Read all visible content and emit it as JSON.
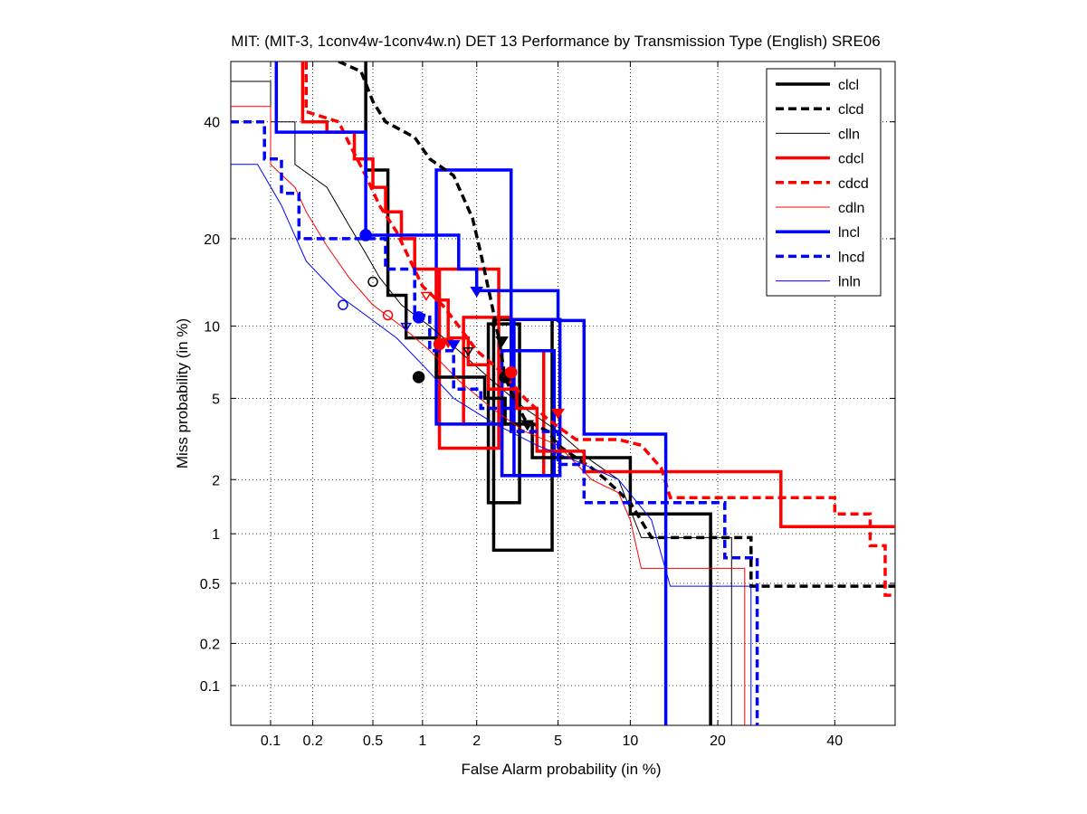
{
  "chart_data": {
    "type": "line",
    "title": "MIT: (MIT-3, 1conv4w-1conv4w.n) DET 13 Performance by Transmission Type (English) SRE06",
    "xlabel": "False Alarm probability (in %)",
    "ylabel": "Miss probability (in %)",
    "xscale": "probit",
    "yscale": "probit",
    "xlim": [
      0.05,
      52
    ],
    "ylim": [
      0.05,
      52
    ],
    "xticks": [
      0.1,
      0.2,
      0.5,
      1,
      2,
      5,
      10,
      20,
      40
    ],
    "yticks": [
      0.1,
      0.2,
      0.5,
      1,
      2,
      5,
      10,
      20,
      40
    ],
    "xtick_labels": [
      "0.1",
      "0.2",
      "0.5",
      "1",
      "2",
      "5",
      "10",
      "20",
      "40"
    ],
    "ytick_labels": [
      "0.1",
      "0.2",
      "0.5",
      "1",
      "2",
      "5",
      "10",
      "20",
      "40"
    ],
    "grid": true,
    "legend_position": "top-right",
    "series": [
      {
        "name": "clcl",
        "color": "#000000",
        "style": "solid",
        "weight": "thick",
        "points": [
          [
            0.45,
            52
          ],
          [
            0.45,
            31
          ],
          [
            0.62,
            31
          ],
          [
            0.62,
            13
          ],
          [
            0.8,
            13
          ],
          [
            0.8,
            9
          ],
          [
            1.2,
            9
          ],
          [
            1.2,
            6.2
          ],
          [
            2.2,
            6.2
          ],
          [
            2.2,
            5
          ],
          [
            2.8,
            5
          ],
          [
            2.8,
            3.8
          ],
          [
            3.8,
            3.8
          ],
          [
            3.8,
            2.6
          ],
          [
            10,
            2.6
          ],
          [
            10,
            1.3
          ],
          [
            19,
            1.3
          ],
          [
            19,
            0.05
          ]
        ],
        "dcf": [
          0.95,
          6.2
        ],
        "min_dcf": [
          3.6,
          3.8
        ]
      },
      {
        "name": "clcd",
        "color": "#000000",
        "style": "dashed",
        "weight": "thick",
        "points": [
          [
            0.3,
            52
          ],
          [
            0.42,
            50
          ],
          [
            0.5,
            44
          ],
          [
            0.6,
            40
          ],
          [
            0.9,
            37
          ],
          [
            1.1,
            33
          ],
          [
            1.5,
            30
          ],
          [
            1.9,
            23
          ],
          [
            2.1,
            18
          ],
          [
            2.4,
            12
          ],
          [
            2.6,
            9
          ],
          [
            2.8,
            6.2
          ],
          [
            3.1,
            5
          ],
          [
            3.5,
            4
          ],
          [
            4.5,
            3.5
          ],
          [
            5,
            3
          ],
          [
            6,
            2.6
          ],
          [
            7,
            2.3
          ],
          [
            8,
            2
          ],
          [
            10,
            1.5
          ],
          [
            12,
            0.95
          ],
          [
            25,
            0.95
          ],
          [
            25,
            0.48
          ],
          [
            52,
            0.48
          ]
        ],
        "dcf": [
          2.8,
          6.2
        ],
        "min_dcf": [
          2.7,
          8.8
        ]
      },
      {
        "name": "clln",
        "color": "#000000",
        "style": "solid",
        "weight": "thin",
        "points": [
          [
            0.05,
            48
          ],
          [
            0.1,
            48
          ],
          [
            0.1,
            40
          ],
          [
            0.15,
            40
          ],
          [
            0.15,
            32
          ],
          [
            0.25,
            28
          ],
          [
            0.35,
            22
          ],
          [
            0.45,
            18
          ],
          [
            0.55,
            15
          ],
          [
            0.75,
            12
          ],
          [
            1.1,
            10
          ],
          [
            1.6,
            8
          ],
          [
            2.4,
            6
          ],
          [
            3.5,
            4.5
          ],
          [
            5,
            3.5
          ],
          [
            7,
            2.5
          ],
          [
            9,
            2
          ],
          [
            11,
            0.95
          ],
          [
            22,
            0.95
          ],
          [
            22,
            0.05
          ]
        ],
        "dcf": [
          0.5,
          14.5
        ],
        "min_dcf": [
          1.8,
          8
        ]
      },
      {
        "name": "cdcl",
        "color": "#ff0000",
        "style": "solid",
        "weight": "thick",
        "points": [
          [
            0.17,
            52
          ],
          [
            0.17,
            40
          ],
          [
            0.25,
            40
          ],
          [
            0.25,
            38
          ],
          [
            0.38,
            38
          ],
          [
            0.38,
            33
          ],
          [
            0.5,
            33
          ],
          [
            0.5,
            28
          ],
          [
            0.6,
            28
          ],
          [
            0.6,
            24
          ],
          [
            0.75,
            24
          ],
          [
            0.75,
            20
          ],
          [
            0.9,
            20
          ],
          [
            0.9,
            16
          ],
          [
            1.2,
            16
          ],
          [
            1.2,
            12.5
          ],
          [
            1.4,
            12.5
          ],
          [
            1.4,
            9
          ],
          [
            1.8,
            9
          ],
          [
            1.8,
            7
          ],
          [
            2.3,
            7
          ],
          [
            2.3,
            5.5
          ],
          [
            3.2,
            5.5
          ],
          [
            3.2,
            4.5
          ],
          [
            4,
            4.5
          ],
          [
            4,
            2.8
          ],
          [
            6.5,
            2.8
          ],
          [
            6.5,
            2.2
          ],
          [
            30,
            2.2
          ],
          [
            30,
            1.1
          ],
          [
            52,
            1.1
          ]
        ],
        "dcf": [
          1.25,
          8.5
        ],
        "min_dcf": [
          5,
          4.3
        ]
      },
      {
        "name": "cdcd",
        "color": "#ff0000",
        "style": "dashed",
        "weight": "thick",
        "points": [
          [
            0.18,
            52
          ],
          [
            0.18,
            42
          ],
          [
            0.3,
            40
          ],
          [
            0.35,
            36
          ],
          [
            0.45,
            30
          ],
          [
            0.55,
            25
          ],
          [
            0.7,
            21
          ],
          [
            0.85,
            17
          ],
          [
            1.0,
            14
          ],
          [
            1.3,
            12
          ],
          [
            1.6,
            10
          ],
          [
            2,
            8
          ],
          [
            2.7,
            6.5
          ],
          [
            3.5,
            5
          ],
          [
            4.5,
            4
          ],
          [
            6,
            3.2
          ],
          [
            9,
            3.2
          ],
          [
            11,
            3
          ],
          [
            13,
            2.3
          ],
          [
            14,
            1.6
          ],
          [
            40,
            1.6
          ],
          [
            40,
            1.3
          ],
          [
            47,
            1.3
          ],
          [
            47,
            0.85
          ],
          [
            50,
            0.85
          ],
          [
            50,
            0.42
          ],
          [
            52,
            0.42
          ]
        ],
        "dcf": [
          3,
          6.5
        ],
        "min_dcf": [
          1.4,
          8.7
        ]
      },
      {
        "name": "cdln",
        "color": "#ff0000",
        "style": "solid",
        "weight": "thin",
        "points": [
          [
            0.05,
            43
          ],
          [
            0.1,
            43
          ],
          [
            0.1,
            32
          ],
          [
            0.15,
            28
          ],
          [
            0.18,
            24
          ],
          [
            0.25,
            19
          ],
          [
            0.35,
            15
          ],
          [
            0.5,
            12
          ],
          [
            0.75,
            10
          ],
          [
            1.1,
            8
          ],
          [
            1.6,
            6
          ],
          [
            2.4,
            4.5
          ],
          [
            3.5,
            3.5
          ],
          [
            5,
            3
          ],
          [
            7,
            2
          ],
          [
            9,
            1.7
          ],
          [
            10,
            1.2
          ],
          [
            11,
            0.62
          ],
          [
            24,
            0.62
          ],
          [
            24,
            0.05
          ]
        ],
        "dcf": [
          0.62,
          11
        ],
        "min_dcf": [
          1.05,
          13
        ]
      },
      {
        "name": "lncl",
        "color": "#0000ff",
        "style": "solid",
        "weight": "thick",
        "points": [
          [
            0.11,
            52
          ],
          [
            0.11,
            38
          ],
          [
            0.45,
            38
          ],
          [
            0.45,
            20.5
          ],
          [
            1.6,
            20.5
          ],
          [
            1.6,
            16
          ],
          [
            2,
            16
          ],
          [
            2,
            13.5
          ],
          [
            5,
            13.5
          ],
          [
            5,
            10.5
          ],
          [
            6.5,
            10.5
          ],
          [
            6.5,
            3.4
          ],
          [
            13.5,
            3.4
          ],
          [
            13.5,
            0.05
          ]
        ],
        "dcf": [
          0.45,
          20.5
        ],
        "min_dcf": [
          2,
          13.5
        ]
      },
      {
        "name": "lncd",
        "color": "#0000ff",
        "style": "dashed",
        "weight": "thick",
        "points": [
          [
            0.05,
            40
          ],
          [
            0.09,
            40
          ],
          [
            0.09,
            33
          ],
          [
            0.12,
            33
          ],
          [
            0.12,
            27
          ],
          [
            0.16,
            27
          ],
          [
            0.16,
            20
          ],
          [
            0.28,
            20
          ],
          [
            0.28,
            20
          ],
          [
            0.6,
            20
          ],
          [
            0.6,
            16
          ],
          [
            0.9,
            16
          ],
          [
            0.9,
            11
          ],
          [
            1.1,
            11
          ],
          [
            1.1,
            8
          ],
          [
            1.5,
            8
          ],
          [
            1.5,
            5.5
          ],
          [
            2.1,
            5.5
          ],
          [
            2.1,
            4.5
          ],
          [
            3,
            4.5
          ],
          [
            3,
            3.5
          ],
          [
            5,
            3.5
          ],
          [
            5,
            2.4
          ],
          [
            6.5,
            2.4
          ],
          [
            6.5,
            1.5
          ],
          [
            21,
            1.5
          ],
          [
            21,
            0.72
          ],
          [
            26,
            0.72
          ],
          [
            26,
            0.05
          ]
        ],
        "dcf": [
          0.95,
          10.8
        ],
        "min_dcf": [
          1.5,
          8.5
        ]
      },
      {
        "name": "lnln",
        "color": "#0000ff",
        "style": "solid",
        "weight": "thin",
        "points": [
          [
            0.05,
            32
          ],
          [
            0.08,
            32
          ],
          [
            0.12,
            25
          ],
          [
            0.18,
            17
          ],
          [
            0.3,
            13
          ],
          [
            0.45,
            11
          ],
          [
            0.7,
            9
          ],
          [
            1,
            7
          ],
          [
            1.5,
            5
          ],
          [
            2.5,
            3.8
          ],
          [
            4,
            3
          ],
          [
            6,
            2.5
          ],
          [
            9,
            2
          ],
          [
            12,
            1.2
          ],
          [
            14,
            0.48
          ],
          [
            25,
            0.48
          ],
          [
            25,
            0.05
          ]
        ],
        "dcf": [
          0.32,
          12
        ],
        "min_dcf": [
          0.8,
          10
        ]
      }
    ],
    "confidence_boxes": [
      {
        "series": "clcl",
        "fa": [
          2.45,
          4.7
        ],
        "miss": [
          0.8,
          10.6
        ]
      },
      {
        "series": "clcl",
        "fa": [
          2.3,
          3.3
        ],
        "miss": [
          1.5,
          10.2
        ]
      },
      {
        "series": "cdcl",
        "fa": [
          1.25,
          2.6
        ],
        "miss": [
          2.9,
          16
        ]
      },
      {
        "series": "cdcl",
        "fa": [
          1.7,
          3.0
        ],
        "miss": [
          3.8,
          10.8
        ]
      },
      {
        "series": "cdcl",
        "fa": [
          2.7,
          4.3
        ],
        "miss": [
          2.1,
          8
        ]
      },
      {
        "series": "lncl",
        "fa": [
          1.2,
          3.0
        ],
        "miss": [
          3.8,
          31
        ]
      },
      {
        "series": "lncl",
        "fa": [
          2.7,
          4.8
        ],
        "miss": [
          2.1,
          8
        ]
      },
      {
        "series": "lncl",
        "fa": [
          3.1,
          5.1
        ],
        "miss": [
          2.1,
          10.6
        ]
      }
    ]
  }
}
